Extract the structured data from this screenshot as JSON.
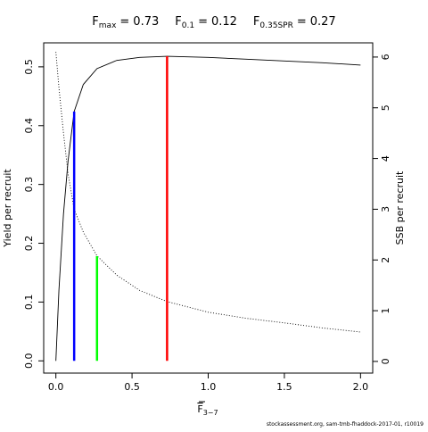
{
  "chart_data": {
    "type": "line",
    "title_parts": [
      {
        "label": "F",
        "sub": "max",
        "sign": "=",
        "value": 0.73
      },
      {
        "label": "F",
        "sub": "0.1",
        "sign": "=",
        "value": 0.12
      },
      {
        "label": "F",
        "sub": "0.35SPR",
        "sign": "=",
        "value": 0.27
      }
    ],
    "x_label": {
      "label": "F",
      "sub": "3−7"
    },
    "y_label": "Yield per recruit",
    "y2_label": "SSB per recruit",
    "footer": "stockassessment.org, sam-tmb-fhaddock-2017-01, r10019",
    "x": [
      0,
      0.02,
      0.05,
      0.08,
      0.12,
      0.18,
      0.27,
      0.4,
      0.55,
      0.73,
      1.0,
      1.25,
      1.5,
      1.75,
      2.0
    ],
    "series": [
      {
        "name": "Yield per recruit",
        "color": "#000000",
        "dash": "solid",
        "values": [
          0,
          0.12,
          0.25,
          0.34,
          0.424,
          0.47,
          0.497,
          0.511,
          0.516,
          0.518,
          0.516,
          0.513,
          0.51,
          0.507,
          0.503
        ]
      },
      {
        "name": "SSB per recruit",
        "color": "#000000",
        "dash": "dotted",
        "axis": "y2",
        "values": [
          6.1,
          5.4,
          4.5,
          3.7,
          3.0,
          2.55,
          2.08,
          1.7,
          1.4,
          1.18,
          0.97,
          0.85,
          0.76,
          0.66,
          0.58
        ]
      }
    ],
    "reference_lines": [
      {
        "x": 0.73,
        "top": 0.518,
        "color": "#ff0000"
      },
      {
        "x": 0.12,
        "top": 0.424,
        "color": "#0000ff"
      },
      {
        "x": 0.27,
        "top": 0.178,
        "color": "#00ff00"
      }
    ],
    "xlim": [
      -0.08,
      2.08
    ],
    "ylim": [
      -0.0208,
      0.5408
    ],
    "y2lim": [
      -0.23,
      6.28
    ],
    "xticks": [
      {
        "value": 0,
        "label": "0.0"
      },
      0.5,
      {
        "value": 1,
        "label": "1.0"
      },
      1.5,
      {
        "value": 2,
        "label": "2.0"
      }
    ],
    "yticks": [
      {
        "value": 0,
        "label": "0.0"
      },
      0.1,
      0.2,
      0.3,
      0.4,
      0.5
    ],
    "y2ticks": [
      0,
      1,
      2,
      3,
      4,
      5,
      6
    ]
  }
}
